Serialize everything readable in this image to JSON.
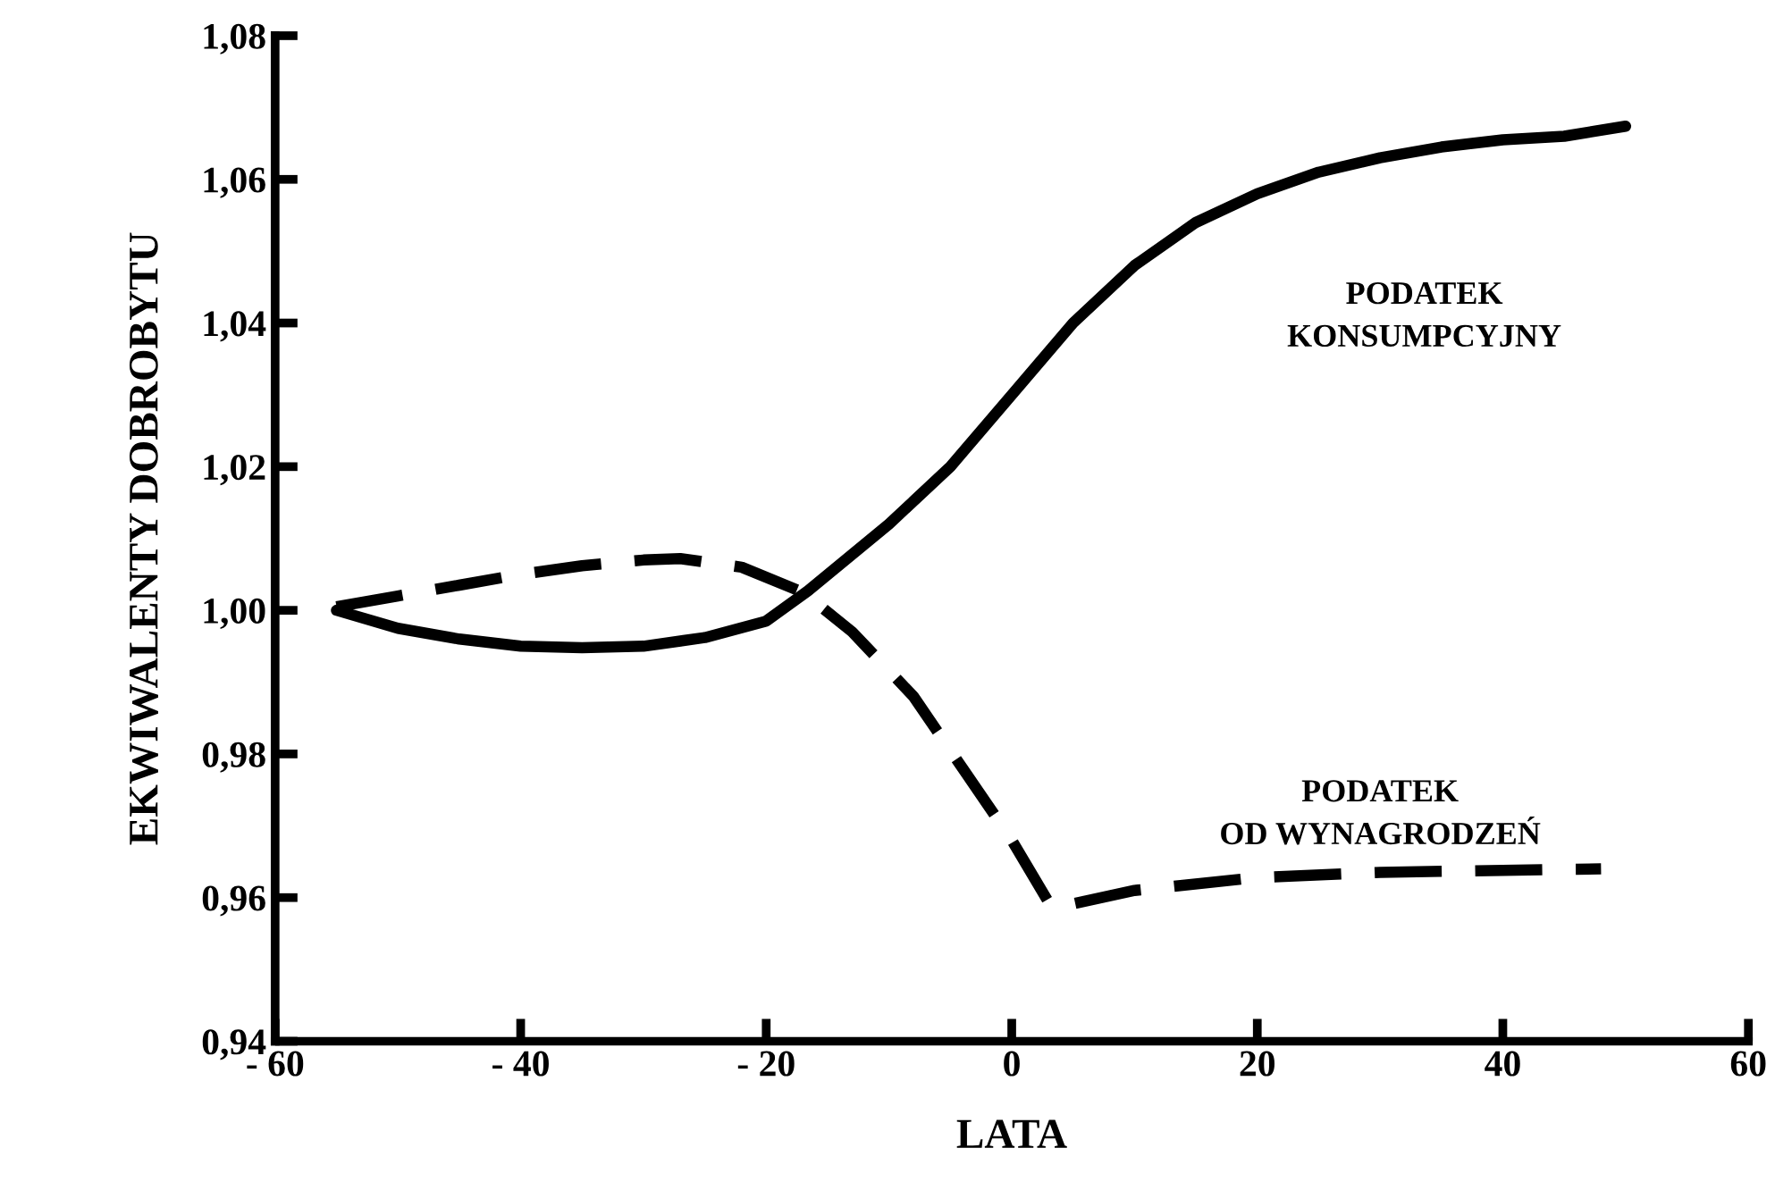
{
  "chart_data": {
    "type": "line",
    "xlabel": "LATA",
    "ylabel": "EKWIWALENTY DOBROBYTU",
    "xlim": [
      -60,
      60
    ],
    "ylim": [
      0.94,
      1.08
    ],
    "xticks": [
      {
        "value": -60,
        "label": "- 60"
      },
      {
        "value": -40,
        "label": "- 40"
      },
      {
        "value": -20,
        "label": "- 20"
      },
      0,
      20,
      40,
      60
    ],
    "yticks": [
      {
        "value": 0.94,
        "label": "0,94"
      },
      {
        "value": 0.96,
        "label": "0,96"
      },
      {
        "value": 0.98,
        "label": "0,98"
      },
      {
        "value": 1.0,
        "label": "1,00"
      },
      {
        "value": 1.02,
        "label": "1,02"
      },
      {
        "value": 1.04,
        "label": "1,04"
      },
      {
        "value": 1.06,
        "label": "1,06"
      },
      {
        "value": 1.08,
        "label": "1,08"
      }
    ],
    "grid": false,
    "series": [
      {
        "name": "PODATEK\nKONSUMPCYJNY",
        "color": "#000000",
        "line_style": "solid",
        "x": [
          -55,
          -50,
          -45,
          -40,
          -35,
          -30,
          -25,
          -20,
          -16.6,
          -10,
          -5,
          0,
          5,
          10,
          15,
          20,
          25,
          30,
          35,
          40,
          45,
          50
        ],
        "values": [
          1.0,
          0.9975,
          0.996,
          0.995,
          0.9948,
          0.995,
          0.9962,
          0.9985,
          1.0027,
          1.012,
          1.02,
          1.03,
          1.04,
          1.048,
          1.054,
          1.058,
          1.061,
          1.063,
          1.0645,
          1.0655,
          1.066,
          1.0674
        ]
      },
      {
        "name": "PODATEK\nOD WYNAGRODZEŃ",
        "color": "#000000",
        "line_style": "dashed",
        "x": [
          -55,
          -50,
          -45,
          -40,
          -35,
          -30,
          -27,
          -22,
          -17,
          -13,
          -8,
          -4,
          0,
          3.3,
          10,
          20,
          30,
          40,
          48
        ],
        "values": [
          1.0005,
          1.002,
          1.0035,
          1.005,
          1.0062,
          1.007,
          1.0072,
          1.006,
          1.0025,
          0.997,
          0.988,
          0.978,
          0.968,
          0.9585,
          0.961,
          0.9628,
          0.9635,
          0.9638,
          0.964
        ]
      }
    ]
  }
}
